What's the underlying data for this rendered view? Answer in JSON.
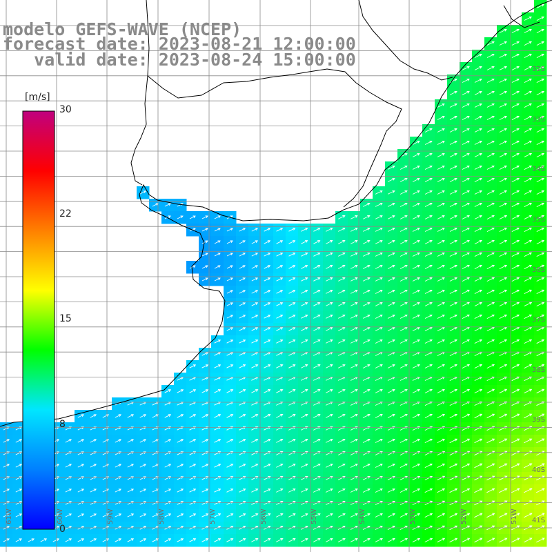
{
  "title": {
    "line1": "modelo GEFS-WAVE (NCEP)",
    "line2": "forecast date: 2023-08-21 12:00:00",
    "line3": "   valid date: 2023-08-24 15:00:00"
  },
  "colorbar": {
    "unit": "[m/s]",
    "min": 0,
    "max": 30,
    "ticks": [
      "30",
      "22",
      "15",
      "8",
      "0"
    ],
    "tick_values": [
      30,
      22,
      15,
      8,
      0
    ],
    "colors": [
      "#0000ff",
      "#0080ff",
      "#00e6ff",
      "#00ff00",
      "#ffff00",
      "#ff8000",
      "#ff0000",
      "#c0007f"
    ]
  },
  "colors": {
    "land": "#ffffff",
    "coast": "#000000",
    "grid": "#8a8a8a",
    "arrow": "#ffffff",
    "title": "#8a8a8a"
  },
  "lat_labels": [
    "32S",
    "33S",
    "34S",
    "35S",
    "36S",
    "37S",
    "38S",
    "39S",
    "40S",
    "41S"
  ],
  "lon_labels": [
    "61W",
    "60W",
    "59W",
    "58W",
    "57W",
    "56W",
    "55W",
    "54W",
    "53W",
    "52W",
    "51W"
  ],
  "wind_direction": "toward north-east"
}
